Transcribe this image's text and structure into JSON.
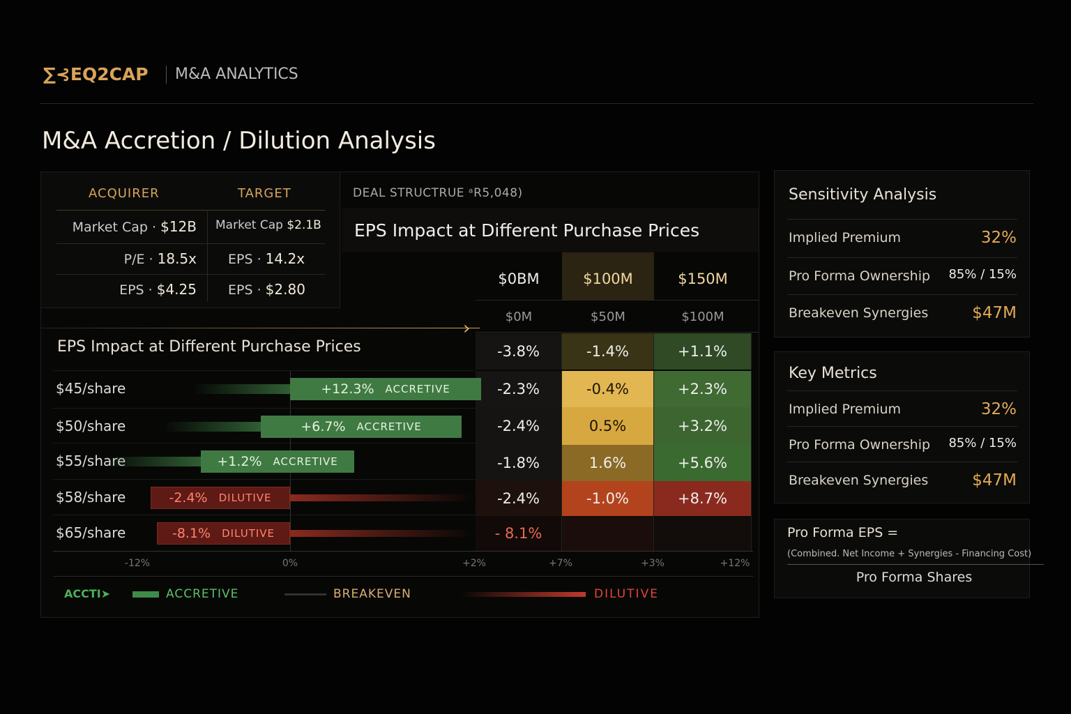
{
  "brand": {
    "logo": "∑⊰EQ2CAP",
    "section": "M&A ANALYTICS"
  },
  "page_title": "M&A Accretion / Dilution Analysis",
  "companies": {
    "acquirer_header": "ACQUIRER",
    "target_header": "TARGET",
    "rows": [
      {
        "a_label": "Market Cap ·",
        "a_value": "$12B",
        "t_label": "Market Cap",
        "t_value": "$2.1B"
      },
      {
        "a_label": "P/E ·",
        "a_value": "18.5x",
        "t_label": "EPS ·",
        "t_value": "14.2x"
      },
      {
        "a_label": "EPS ·",
        "a_value": "$4.25",
        "t_label": "EPS ·",
        "t_value": "$2.80"
      }
    ]
  },
  "deal": {
    "label": "DEAL STRUCTRUE ᵃR5,048)",
    "title": "EPS Impact at Different Purchase Prices",
    "col_headers": [
      "$0BM",
      "$100M",
      "$150M"
    ],
    "col_subheaders": [
      "$0M",
      "$50M",
      "$100M"
    ],
    "matrix": [
      [
        "-3.8%",
        "-1.4%",
        "+1.1%"
      ],
      [
        "-2.3%",
        "-0.4%",
        "+2.3%"
      ],
      [
        "-2.4%",
        "0.5%",
        "+3.2%"
      ],
      [
        "-1.8%",
        "1.6%",
        "+5.6%"
      ],
      [
        "-2.4%",
        "-1.0%",
        "+8.7%"
      ],
      [
        "- 8.1%",
        "",
        ""
      ]
    ],
    "cell_colors": [
      [
        "#151413",
        "#3a3416",
        "#2f4a24"
      ],
      [
        "#171513",
        "#e2b650",
        "#3f6a32"
      ],
      [
        "#161412",
        "#d8a840",
        "#3d6530"
      ],
      [
        "#151412",
        "#8a6a24",
        "#3b6a30"
      ],
      [
        "#1e100d",
        "#b3431c",
        "#8a2a1e"
      ],
      [
        "#120a09",
        "#1a0d0b",
        "#120c0a"
      ]
    ]
  },
  "chart": {
    "title": "EPS Impact at Different Purchase Prices",
    "rows": [
      {
        "label": "$45/share",
        "value": "+12.3%",
        "status": "ACCRETIVE"
      },
      {
        "label": "$50/share",
        "value": "+6.7%",
        "status": "ACCRETIVE"
      },
      {
        "label": "$55/share",
        "value": "+1.2%",
        "status": "ACCRETIVE"
      },
      {
        "label": "$58/share",
        "value": "-2.4%",
        "status": "DILUTIVE"
      },
      {
        "label": "$65/share",
        "value": "-8.1%",
        "status": "DILUTIVE"
      }
    ],
    "ticks": [
      "-12%",
      "0%",
      "+2%",
      "+7%",
      "+3%",
      "+12%"
    ],
    "legend": {
      "arrow_text": "ACCTI",
      "accretive": "ACCRETIVE",
      "breakeven": "BREAKEVEN",
      "dilutive": "DILUTIVE"
    },
    "colors": {
      "accretive": "#3f7a42",
      "dilutive": "#c0392b",
      "breakeven": "#d9b070"
    }
  },
  "sensitivity": {
    "title": "Sensitivity Analysis",
    "rows": [
      {
        "label": "Implied Premium",
        "value": "32%"
      },
      {
        "label": "Pro Forma Ownership",
        "value": "85% / 15%"
      },
      {
        "label": "Breakeven Synergies",
        "value": "$47M"
      }
    ]
  },
  "key_metrics": {
    "title": "Key Metrics",
    "rows": [
      {
        "label": "Implied Premium",
        "value": "32%"
      },
      {
        "label": "Pro Forma Ownership",
        "value": "85% / 15%"
      },
      {
        "label": "Breakeven Synergies",
        "value": "$47M"
      }
    ]
  },
  "formula": {
    "lhs": "Pro Forma EPS =",
    "numerator": "(Combined. Net Income + Synergies - Financing Cost)",
    "denominator": "Pro Forma Shares"
  }
}
